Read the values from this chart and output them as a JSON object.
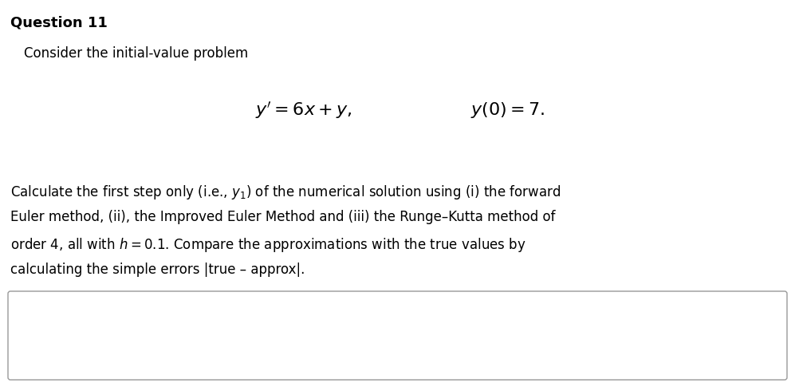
{
  "background_color": "#ffffff",
  "title_text": "Question 11",
  "title_fontsize": 13,
  "title_fontweight": "bold",
  "line1_text": "Consider the initial-value problem",
  "line1_fontsize": 12,
  "math_eq1": "$\\mathit{y'} = 6x + y,$",
  "math_eq2": "$y(0) = 7.$",
  "math_fontsize": 16,
  "para_lines": [
    "Calculate the first step only (i.e., $y_1$) of the numerical solution using (i) the forward",
    "Euler method, (ii), the Improved Euler Method and (iii) the Runge–Kutta method of",
    "order 4, all with $h = 0.1$. Compare the approximations with the true values by",
    "calculating the simple errors |true – approx|."
  ],
  "para_fontsize": 12,
  "box_color": "#ffffff",
  "box_edge_color": "#999999"
}
